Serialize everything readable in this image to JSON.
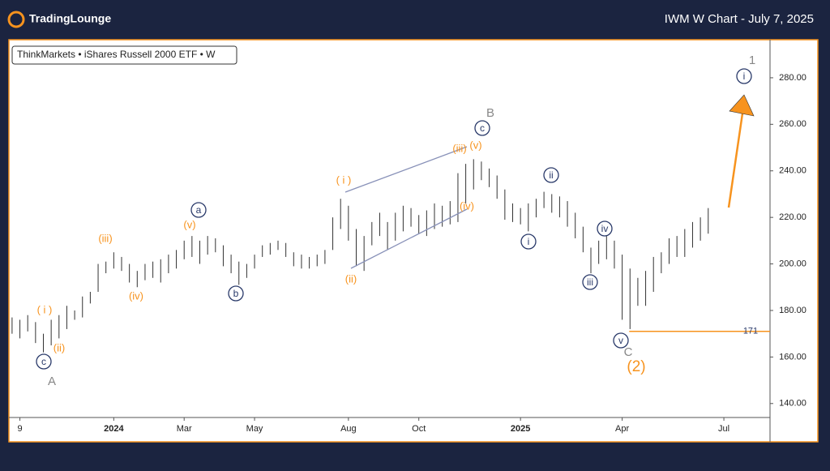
{
  "header": {
    "logo": "TradingLounge",
    "title": "IWM W Chart - July 7, 2025"
  },
  "chart_data": {
    "type": "ohlc",
    "legend_text": "ThinkMarkets • iShares Russell 2000 ETF • W",
    "x": [
      0,
      1,
      2,
      3,
      4,
      5,
      6,
      7,
      8,
      9,
      10,
      11,
      12,
      13,
      14,
      15,
      16,
      17,
      18,
      19,
      20,
      21,
      22,
      23,
      24,
      25,
      26,
      27,
      28,
      29,
      30,
      31,
      32,
      33,
      34,
      35,
      36,
      37,
      38,
      39,
      40,
      41,
      42,
      43,
      44,
      45,
      46,
      47,
      48,
      49,
      50,
      51,
      52,
      53,
      54,
      55,
      56,
      57,
      58,
      59,
      60,
      61,
      62,
      63,
      64,
      65,
      66,
      67,
      68,
      69,
      70,
      71,
      72,
      73,
      74,
      75,
      76,
      77,
      78,
      79,
      80,
      81,
      82,
      83,
      84,
      85,
      86,
      87,
      88,
      89
    ],
    "series": [
      {
        "name": "High",
        "color": "#333333",
        "values": [
          177,
          176,
          178,
          175,
          170,
          176,
          178,
          182,
          180,
          186,
          188,
          200,
          201,
          205,
          203,
          200,
          197,
          200,
          201,
          202,
          204,
          206,
          210,
          212,
          210,
          212,
          211,
          208,
          204,
          201,
          200,
          204,
          208,
          209,
          210,
          209,
          205,
          204,
          203,
          204,
          206,
          220,
          228,
          225,
          215,
          212,
          218,
          222,
          218,
          222,
          225,
          224,
          221,
          223,
          226,
          225,
          227,
          239,
          243,
          245,
          244,
          241,
          238,
          232,
          226,
          224,
          226,
          228,
          231,
          230,
          229,
          227,
          222,
          216,
          207,
          210,
          212,
          210,
          204,
          198,
          194,
          197,
          203,
          205,
          211,
          212,
          215,
          218,
          220,
          224
        ]
      },
      {
        "name": "Low",
        "color": "#333333",
        "values": [
          170,
          168,
          171,
          166,
          162,
          165,
          168,
          172,
          176,
          177,
          183,
          188,
          196,
          198,
          197,
          192,
          190,
          193,
          194,
          192,
          196,
          198,
          202,
          203,
          200,
          204,
          205,
          199,
          196,
          191,
          194,
          198,
          203,
          204,
          206,
          203,
          199,
          198,
          198,
          199,
          200,
          206,
          215,
          210,
          199,
          197,
          208,
          212,
          206,
          210,
          214,
          216,
          213,
          212,
          215,
          216,
          217,
          218,
          226,
          232,
          236,
          233,
          228,
          219,
          218,
          217,
          214,
          220,
          224,
          222,
          220,
          216,
          211,
          205,
          196,
          200,
          202,
          198,
          176,
          172,
          182,
          182,
          188,
          196,
          200,
          203,
          203,
          207,
          210,
          213
        ]
      }
    ],
    "level": 171,
    "level_color": "#f7931e",
    "xlim": [
      -0.3,
      96.9
    ],
    "xticks": [
      {
        "value": 1,
        "label": "9"
      },
      {
        "value": 13,
        "label": "2024"
      },
      {
        "value": 22,
        "label": "Mar"
      },
      {
        "value": 31,
        "label": "May"
      },
      {
        "value": 43,
        "label": "Aug"
      },
      {
        "value": 52,
        "label": "Oct"
      },
      {
        "value": 65,
        "label": "2025"
      },
      {
        "value": 78,
        "label": "Apr"
      },
      {
        "value": 91,
        "label": "Jul"
      }
    ],
    "ylim": [
      134,
      296
    ],
    "yticks": [
      {
        "value": 140,
        "label": "140.00"
      },
      {
        "value": 160,
        "label": "160.00"
      },
      {
        "value": 180,
        "label": "180.00"
      },
      {
        "value": 200,
        "label": "200.00"
      },
      {
        "value": 220,
        "label": "220.00"
      },
      {
        "value": 240,
        "label": "240.00"
      },
      {
        "value": 260,
        "label": "260.00"
      },
      {
        "value": 280,
        "label": "280.00"
      }
    ],
    "wave_labels": [
      "A",
      "c",
      "( i )",
      "(ii)",
      "(iii)",
      "(iv)",
      "(v)",
      "a",
      "b",
      "( i )",
      "(ii)",
      "(iii)",
      "(iv)",
      "(v)",
      "B",
      "c",
      "i",
      "ii",
      "iii",
      "iv",
      "v",
      "C",
      "(2)",
      "1",
      "i"
    ]
  }
}
